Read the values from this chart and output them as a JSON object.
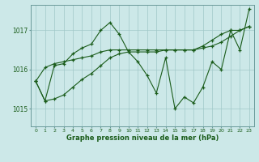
{
  "title": "Graphe pression niveau de la mer (hPa)",
  "bg_color": "#cce8e8",
  "line_color": "#1a5c1a",
  "grid_color": "#a0c8c8",
  "xlim": [
    -0.5,
    23.5
  ],
  "ylim": [
    1014.55,
    1017.65
  ],
  "yticks": [
    1015,
    1016,
    1017
  ],
  "xtick_labels": [
    "0",
    "1",
    "2",
    "3",
    "4",
    "5",
    "6",
    "7",
    "8",
    "9",
    "10",
    "11",
    "12",
    "13",
    "14",
    "15",
    "16",
    "17",
    "18",
    "19",
    "20",
    "21",
    "22",
    "23"
  ],
  "series_main": [
    1015.7,
    1015.2,
    1016.1,
    1016.15,
    1016.4,
    1016.55,
    1016.65,
    1017.0,
    1017.2,
    1016.9,
    1016.45,
    1016.2,
    1015.85,
    1015.4,
    1016.3,
    1015.0,
    1015.3,
    1015.15,
    1015.55,
    1016.2,
    1016.0,
    1017.0,
    1016.5,
    1017.55
  ],
  "series_smooth": [
    1015.7,
    1016.05,
    1016.15,
    1016.2,
    1016.25,
    1016.3,
    1016.35,
    1016.45,
    1016.5,
    1016.5,
    1016.5,
    1016.5,
    1016.5,
    1016.5,
    1016.5,
    1016.5,
    1016.5,
    1016.5,
    1016.55,
    1016.6,
    1016.7,
    1016.85,
    1017.0,
    1017.1
  ],
  "series_trend": [
    1015.7,
    1015.2,
    1015.25,
    1015.35,
    1015.55,
    1015.75,
    1015.9,
    1016.1,
    1016.3,
    1016.4,
    1016.45,
    1016.45,
    1016.45,
    1016.45,
    1016.5,
    1016.5,
    1016.5,
    1016.5,
    1016.6,
    1016.75,
    1016.9,
    1017.0,
    1017.0,
    1017.1
  ]
}
